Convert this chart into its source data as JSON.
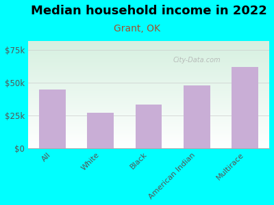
{
  "title": "Median household income in 2022",
  "subtitle": "Grant, OK",
  "categories": [
    "All",
    "White",
    "Black",
    "American Indian",
    "Multirace"
  ],
  "values": [
    45000,
    27000,
    33000,
    48000,
    62000
  ],
  "bar_color": "#c9aed6",
  "background_outer": "#00FFFF",
  "background_inner_top": "#d6f0e0",
  "background_inner_bottom": "#ffffff",
  "title_fontsize": 13,
  "subtitle_fontsize": 10,
  "subtitle_color": "#a0522d",
  "tick_label_color": "#555555",
  "ytick_labels": [
    "$0",
    "$25k",
    "$50k",
    "$75k"
  ],
  "ytick_values": [
    0,
    25000,
    50000,
    75000
  ],
  "ylim": [
    0,
    82000
  ],
  "watermark": "City-Data.com"
}
